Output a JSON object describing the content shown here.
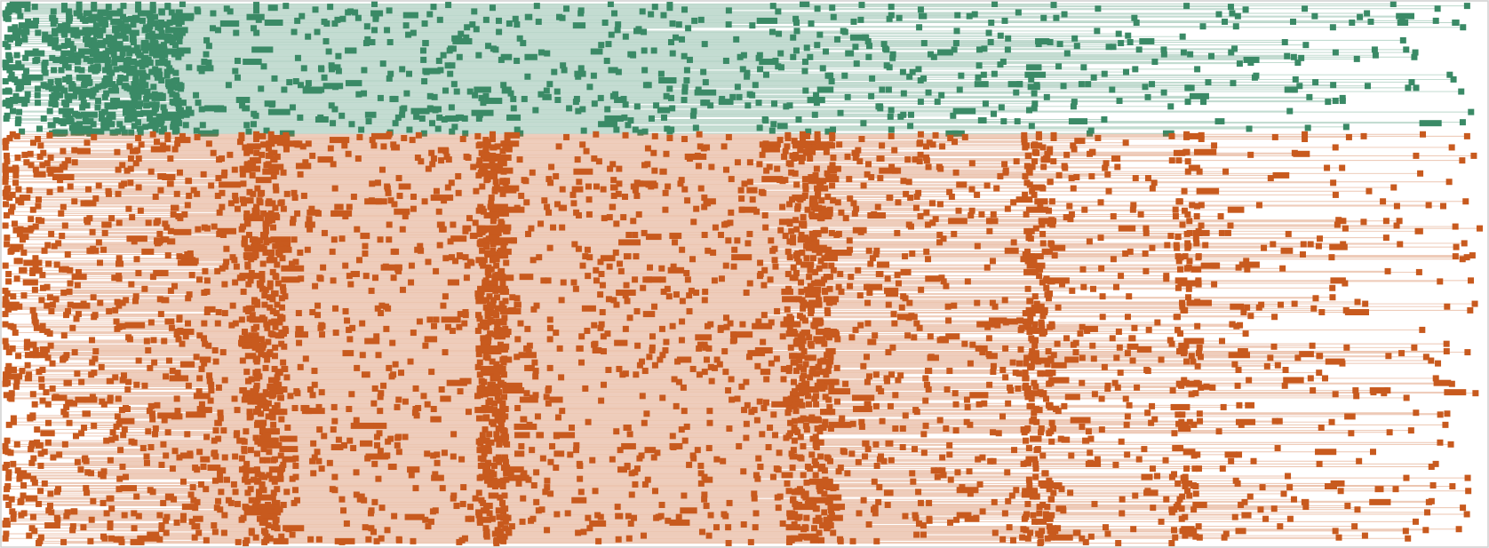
{
  "chart_data": {
    "type": "scatter",
    "subtype": "timeline-event-strips",
    "title": "",
    "xlabel": "",
    "ylabel": "",
    "xlim": [
      0,
      100
    ],
    "grid": false,
    "legend": "none",
    "series": [
      {
        "color": "#3a8a66",
        "row_count": 140,
        "start_range": [
          0,
          12
        ],
        "end_range": [
          40,
          100
        ],
        "dense_start_block": [
          3,
          12
        ],
        "sample_rows": [
          {
            "start": 0.5,
            "end": 94,
            "points": [
              0.5,
              5,
              9,
              12,
              25,
              41,
              54,
              67,
              94
            ]
          },
          {
            "start": 1.2,
            "end": 71,
            "points": [
              1.2,
              6,
              10,
              17,
              30,
              45,
              58,
              71
            ]
          },
          {
            "start": 0.3,
            "end": 99,
            "points": [
              0.3,
              4,
              8,
              11,
              19,
              36,
              52,
              80,
              99
            ]
          },
          {
            "start": 2.0,
            "end": 83,
            "points": [
              2.0,
              7,
              11,
              22,
              29,
              44,
              60,
              83
            ]
          },
          {
            "start": 0.8,
            "end": 56,
            "points": [
              0.8,
              5,
              9,
              18,
              33,
              45,
              56
            ]
          },
          {
            "start": 1.5,
            "end": 97,
            "points": [
              1.5,
              6,
              10,
              15,
              38,
              55,
              74,
              88,
              97
            ]
          },
          {
            "start": 0.2,
            "end": 84,
            "points": [
              0.2,
              4,
              9,
              13,
              21,
              46,
              62,
              84
            ]
          },
          {
            "start": 0.9,
            "end": 49,
            "points": [
              0.9,
              5,
              10,
              17,
              26,
              39,
              49
            ]
          }
        ]
      },
      {
        "color": "#c85a1e",
        "row_count": 440,
        "start_range": [
          0,
          15
        ],
        "end_range": [
          50,
          100
        ],
        "dense_bands": [
          [
            16,
            19
          ],
          [
            32,
            34
          ],
          [
            53,
            56
          ],
          [
            69,
            71
          ],
          [
            79,
            81
          ]
        ],
        "sample_rows": [
          {
            "start": 0.5,
            "end": 96,
            "points": [
              0.5,
              10,
              17,
              18,
              26,
              33,
              40,
              47,
              54,
              55,
              62,
              70,
              80,
              88,
              96
            ]
          },
          {
            "start": 3.0,
            "end": 81,
            "points": [
              3.0,
              11,
              16,
              19,
              28,
              34,
              42,
              53,
              56,
              63,
              69,
              71,
              81
            ]
          },
          {
            "start": 0.8,
            "end": 99,
            "points": [
              0.8,
              12,
              17,
              25,
              32,
              33,
              44,
              54,
              60,
              70,
              79,
              80,
              92,
              99
            ]
          },
          {
            "start": 6.0,
            "end": 91,
            "points": [
              6.0,
              13,
              18,
              24,
              33,
              38,
              49,
              55,
              65,
              70,
              80,
              86,
              91
            ]
          },
          {
            "start": 0.3,
            "end": 74,
            "points": [
              0.3,
              9,
              16,
              18,
              27,
              34,
              45,
              53,
              56,
              64,
              71,
              74
            ]
          },
          {
            "start": 2.2,
            "end": 88,
            "points": [
              2.2,
              11,
              17,
              19,
              31,
              33,
              46,
              54,
              58,
              69,
              81,
              88
            ]
          }
        ]
      }
    ]
  }
}
